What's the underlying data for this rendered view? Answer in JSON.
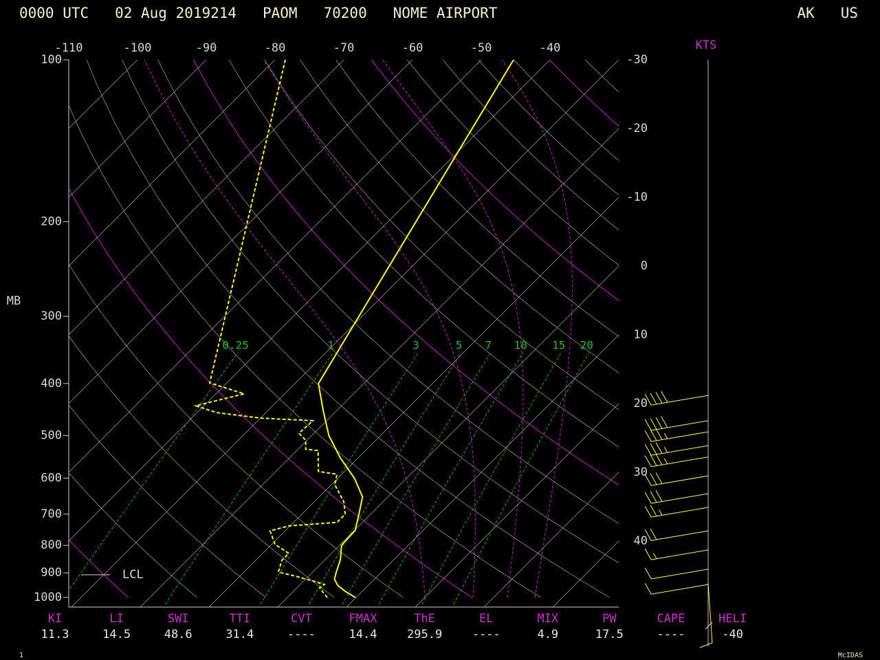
{
  "chart_data": {
    "type": "skewt",
    "title": "0000 UTC   02 Aug 2019214   PAOM   70200   NOME AIRPORT",
    "location": "AK   US",
    "ylabel": "MB",
    "log_y": true,
    "ylim": [
      1000,
      100
    ],
    "yticks": [
      100,
      200,
      300,
      400,
      500,
      600,
      700,
      800,
      900,
      1000
    ],
    "xlim": [
      -110,
      -30
    ],
    "xticks": [
      -110,
      -100,
      -90,
      -80,
      -70,
      -60,
      -50,
      -40
    ],
    "isotherm_ticks": [
      -30,
      -20,
      -10,
      0,
      10,
      20,
      30,
      40
    ],
    "mixing_ratio_lines": [
      0.25,
      1,
      3,
      5,
      7,
      10,
      15,
      20
    ],
    "series": [
      {
        "color": "#ffff00",
        "dash": false,
        "pressure": [
          1000,
          975,
          950,
          925,
          900,
          850,
          800,
          750,
          700,
          650,
          600,
          550,
          500,
          450,
          400,
          100
        ],
        "values": [
          9.9,
          7.6,
          5.6,
          4.2,
          3.5,
          2.2,
          0.3,
          0.1,
          -1.7,
          -3.7,
          -7.6,
          -12.6,
          -17.5,
          -21.9,
          -26.6,
          -45.3
        ]
      },
      {
        "color": "#ffff00",
        "dash": true,
        "pressure": [
          1000,
          960,
          946,
          932,
          913,
          897,
          853,
          828,
          797,
          752,
          736,
          725,
          700,
          664,
          617,
          590,
          583,
          533,
          530,
          510,
          495,
          469,
          464,
          453,
          440,
          418,
          399,
          100
        ],
        "values": [
          5.8,
          3.3,
          3.5,
          1.3,
          -1.9,
          -5.0,
          -6.2,
          -6.2,
          -9.5,
          -12.2,
          -10.2,
          -3.7,
          -3.7,
          -5.7,
          -9.5,
          -10.7,
          -13.8,
          -16.9,
          -18.9,
          -20.2,
          -22.2,
          -22.0,
          -29.9,
          -37.2,
          -41.2,
          -35.9,
          -42.5,
          -78.5
        ]
      }
    ],
    "wind_label": "KTS",
    "winds": {
      "color": "#ffff40",
      "pressure": [
        421,
        469,
        492,
        522,
        548,
        594,
        641,
        680,
        752,
        816,
        886,
        946
      ],
      "speed": [
        40,
        40,
        35,
        35,
        35,
        30,
        30,
        25,
        20,
        15,
        10,
        10
      ]
    },
    "lcl_label": "LCL",
    "indices": [
      {
        "label": "KI",
        "value": 11.3
      },
      {
        "label": "LI",
        "value": 14.5
      },
      {
        "label": "SWI",
        "value": 48.6
      },
      {
        "label": "TTI",
        "value": 31.4
      },
      {
        "label": "CVT",
        "value": "----"
      },
      {
        "label": "FMAX",
        "value": 14.4
      },
      {
        "label": "ThE",
        "value": 295.9
      },
      {
        "label": "EL",
        "value": "----"
      },
      {
        "label": "MIX",
        "value": 4.9
      },
      {
        "label": "PW",
        "value": 17.5
      },
      {
        "label": "CAPE",
        "value": "----"
      },
      {
        "label": "HELI",
        "value": -40
      }
    ],
    "footer_left": "1",
    "footer_right": "McIDAS"
  }
}
